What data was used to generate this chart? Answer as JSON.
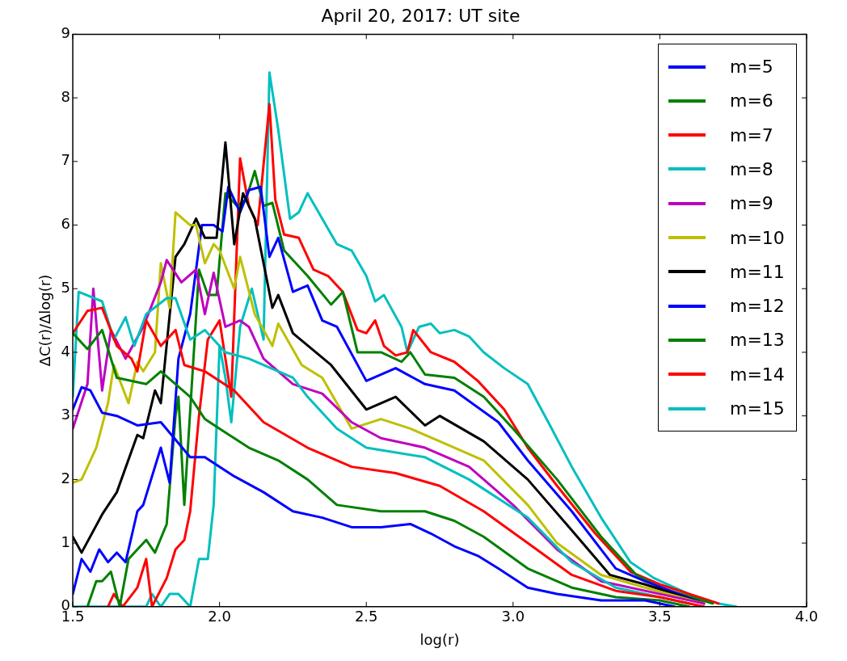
{
  "chart_data": {
    "type": "line",
    "title": "April 20, 2017: UT site",
    "xlabel": "log(r)",
    "ylabel": "ΔC(r)/Δlog(r)",
    "xlim": [
      1.5,
      4.0
    ],
    "ylim": [
      0,
      9
    ],
    "xticks": [
      1.5,
      {
        "value": 2,
        "label": "2.0"
      },
      2.5,
      {
        "value": 3,
        "label": "3.0"
      },
      3.5,
      {
        "value": 4,
        "label": "4.0"
      }
    ],
    "yticks": [
      0,
      1,
      2,
      3,
      4,
      5,
      6,
      7,
      8,
      9
    ],
    "grid": false,
    "legend": "top right",
    "marker": "none",
    "line_style": "solid",
    "series": [
      {
        "name": "m=5",
        "color": "#0000ff",
        "x": [
          1.5,
          1.53,
          1.56,
          1.6,
          1.65,
          1.72,
          1.8,
          1.9,
          1.95,
          2.05,
          2.15,
          2.25,
          2.35,
          2.45,
          2.55,
          2.65,
          2.72,
          2.8,
          2.88,
          2.95,
          3.05,
          3.15,
          3.3,
          3.45,
          3.55
        ],
        "values": [
          3.1,
          3.45,
          3.4,
          3.05,
          3.0,
          2.85,
          2.9,
          2.35,
          2.35,
          2.05,
          1.8,
          1.5,
          1.4,
          1.25,
          1.25,
          1.3,
          1.15,
          0.95,
          0.8,
          0.6,
          0.3,
          0.2,
          0.1,
          0.1,
          0
        ]
      },
      {
        "name": "m=6",
        "color": "#008000",
        "x": [
          1.5,
          1.55,
          1.6,
          1.65,
          1.75,
          1.8,
          1.9,
          1.95,
          2.0,
          2.1,
          2.2,
          2.3,
          2.4,
          2.55,
          2.7,
          2.8,
          2.9,
          3.05,
          3.2,
          3.35,
          3.5,
          3.6
        ],
        "values": [
          4.3,
          4.05,
          4.35,
          3.6,
          3.5,
          3.7,
          3.3,
          2.95,
          2.8,
          2.5,
          2.3,
          2.0,
          1.6,
          1.5,
          1.5,
          1.35,
          1.1,
          0.6,
          0.3,
          0.15,
          0.1,
          0
        ]
      },
      {
        "name": "m=7",
        "color": "#ff0000",
        "x": [
          1.5,
          1.55,
          1.6,
          1.65,
          1.7,
          1.72,
          1.75,
          1.8,
          1.85,
          1.88,
          1.95,
          2.05,
          2.15,
          2.3,
          2.45,
          2.6,
          2.75,
          2.9,
          3.05,
          3.2,
          3.35,
          3.5,
          3.65
        ],
        "values": [
          4.3,
          4.65,
          4.7,
          4.1,
          3.9,
          3.7,
          4.5,
          4.1,
          4.35,
          3.8,
          3.7,
          3.4,
          2.9,
          2.5,
          2.2,
          2.1,
          1.9,
          1.5,
          1.0,
          0.5,
          0.25,
          0.15,
          0
        ]
      },
      {
        "name": "m=8",
        "color": "#00bfbf",
        "x": [
          1.5,
          1.52,
          1.6,
          1.64,
          1.68,
          1.71,
          1.75,
          1.82,
          1.85,
          1.9,
          1.95,
          2.02,
          2.1,
          2.25,
          2.3,
          2.4,
          2.5,
          2.7,
          2.85,
          3.05,
          3.2,
          3.35,
          3.45,
          3.6
        ],
        "values": [
          3.3,
          4.95,
          4.8,
          4.2,
          4.55,
          4.1,
          4.6,
          4.85,
          4.85,
          4.2,
          4.35,
          4.0,
          3.9,
          3.6,
          3.3,
          2.8,
          2.5,
          2.35,
          2.0,
          1.4,
          0.7,
          0.3,
          0.2,
          0.05
        ]
      },
      {
        "name": "m=9",
        "color": "#bf00bf",
        "x": [
          1.5,
          1.55,
          1.57,
          1.6,
          1.63,
          1.68,
          1.74,
          1.8,
          1.82,
          1.87,
          1.92,
          1.95,
          1.98,
          2.02,
          2.07,
          2.1,
          2.15,
          2.25,
          2.35,
          2.45,
          2.55,
          2.7,
          2.85,
          3.0,
          3.15,
          3.3,
          3.45,
          3.65
        ],
        "values": [
          2.8,
          3.5,
          5.0,
          3.4,
          4.35,
          3.9,
          4.4,
          5.1,
          5.45,
          5.1,
          5.3,
          4.6,
          5.25,
          4.4,
          4.5,
          4.4,
          3.9,
          3.5,
          3.35,
          2.9,
          2.65,
          2.5,
          2.2,
          1.6,
          0.9,
          0.4,
          0.25,
          0.05
        ]
      },
      {
        "name": "m=10",
        "color": "#bfbf00",
        "x": [
          1.5,
          1.53,
          1.58,
          1.62,
          1.64,
          1.69,
          1.72,
          1.74,
          1.78,
          1.8,
          1.83,
          1.85,
          1.9,
          1.92,
          1.95,
          1.98,
          2.0,
          2.05,
          2.07,
          2.12,
          2.18,
          2.2,
          2.28,
          2.35,
          2.45,
          2.55,
          2.65,
          2.75,
          2.9,
          3.05,
          3.15,
          3.3,
          3.45,
          3.65
        ],
        "values": [
          1.95,
          2.0,
          2.5,
          3.2,
          3.8,
          3.2,
          3.85,
          3.7,
          4.0,
          5.4,
          4.7,
          6.2,
          6.0,
          6.0,
          5.4,
          5.7,
          5.6,
          5.0,
          5.5,
          4.6,
          4.1,
          4.45,
          3.8,
          3.6,
          2.8,
          2.95,
          2.8,
          2.6,
          2.3,
          1.6,
          1.0,
          0.5,
          0.3,
          0.05
        ]
      },
      {
        "name": "m=11",
        "color": "#000000",
        "x": [
          1.5,
          1.53,
          1.6,
          1.65,
          1.72,
          1.74,
          1.78,
          1.8,
          1.85,
          1.88,
          1.92,
          1.95,
          1.99,
          2.02,
          2.05,
          2.08,
          2.12,
          2.18,
          2.2,
          2.25,
          2.38,
          2.5,
          2.6,
          2.7,
          2.75,
          2.9,
          3.05,
          3.2,
          3.33,
          3.45,
          3.65
        ],
        "values": [
          1.1,
          0.85,
          1.45,
          1.8,
          2.7,
          2.65,
          3.4,
          3.2,
          5.5,
          5.7,
          6.1,
          5.8,
          5.8,
          7.3,
          5.7,
          6.5,
          6.1,
          4.7,
          4.9,
          4.3,
          3.8,
          3.1,
          3.3,
          2.85,
          3.0,
          2.6,
          2.0,
          1.2,
          0.5,
          0.35,
          0.05
        ]
      },
      {
        "name": "m=12",
        "color": "#0000ff",
        "x": [
          1.5,
          1.53,
          1.56,
          1.59,
          1.62,
          1.65,
          1.68,
          1.72,
          1.74,
          1.8,
          1.83,
          1.86,
          1.9,
          1.94,
          1.98,
          2.01,
          2.03,
          2.07,
          2.1,
          2.14,
          2.17,
          2.2,
          2.25,
          2.3,
          2.35,
          2.4,
          2.5,
          2.6,
          2.7,
          2.8,
          2.95,
          3.05,
          3.2,
          3.35,
          3.45,
          3.65
        ],
        "values": [
          0.2,
          0.75,
          0.55,
          0.9,
          0.7,
          0.85,
          0.7,
          1.5,
          1.6,
          2.5,
          1.95,
          3.9,
          4.6,
          6.0,
          6.0,
          5.9,
          6.6,
          6.2,
          6.55,
          6.6,
          5.5,
          5.8,
          4.95,
          5.05,
          4.5,
          4.4,
          3.55,
          3.75,
          3.5,
          3.4,
          2.9,
          2.3,
          1.5,
          0.6,
          0.4,
          0.05
        ]
      },
      {
        "name": "m=13",
        "color": "#008000",
        "x": [
          1.55,
          1.58,
          1.6,
          1.63,
          1.66,
          1.69,
          1.75,
          1.78,
          1.82,
          1.85,
          1.86,
          1.88,
          1.93,
          1.96,
          1.99,
          2.02,
          2.06,
          2.09,
          2.12,
          2.15,
          2.18,
          2.22,
          2.3,
          2.38,
          2.42,
          2.47,
          2.55,
          2.62,
          2.65,
          2.7,
          2.8,
          2.9,
          3.0,
          3.15,
          3.3,
          3.42,
          3.5,
          3.68
        ],
        "values": [
          0,
          0.4,
          0.4,
          0.55,
          0,
          0.75,
          1.05,
          0.85,
          1.3,
          3.0,
          3.3,
          1.6,
          5.3,
          4.9,
          4.9,
          6.5,
          6.3,
          6.4,
          6.85,
          6.3,
          6.35,
          5.6,
          5.2,
          4.75,
          4.95,
          4.0,
          4.0,
          3.85,
          4.0,
          3.65,
          3.6,
          3.3,
          2.8,
          2.0,
          1.1,
          0.5,
          0.3,
          0.05
        ]
      },
      {
        "name": "m=14",
        "color": "#ff0000",
        "x": [
          1.62,
          1.64,
          1.67,
          1.72,
          1.75,
          1.77,
          1.82,
          1.85,
          1.88,
          1.9,
          1.93,
          1.96,
          2.0,
          2.04,
          2.07,
          2.1,
          2.13,
          2.17,
          2.19,
          2.22,
          2.27,
          2.32,
          2.37,
          2.42,
          2.47,
          2.5,
          2.53,
          2.56,
          2.6,
          2.64,
          2.66,
          2.72,
          2.8,
          2.88,
          2.97,
          3.05,
          3.15,
          3.28,
          3.4,
          3.5,
          3.7
        ],
        "values": [
          0,
          0.2,
          0,
          0.3,
          0.75,
          0,
          0.45,
          0.9,
          1.05,
          1.5,
          3.0,
          4.2,
          4.5,
          3.3,
          7.05,
          6.3,
          6.0,
          7.9,
          6.4,
          5.85,
          5.8,
          5.3,
          5.2,
          4.95,
          4.35,
          4.3,
          4.5,
          4.1,
          3.95,
          4.0,
          4.35,
          4.0,
          3.85,
          3.55,
          3.1,
          2.5,
          1.9,
          1.15,
          0.55,
          0.35,
          0.05
        ]
      },
      {
        "name": "m=15",
        "color": "#00bfbf",
        "x": [
          1.5,
          1.75,
          1.77,
          1.8,
          1.83,
          1.86,
          1.9,
          1.93,
          1.96,
          1.98,
          2.0,
          2.02,
          2.04,
          2.07,
          2.11,
          2.15,
          2.17,
          2.2,
          2.24,
          2.27,
          2.3,
          2.35,
          2.4,
          2.45,
          2.5,
          2.53,
          2.56,
          2.62,
          2.64,
          2.68,
          2.72,
          2.75,
          2.8,
          2.85,
          2.9,
          2.97,
          3.05,
          3.12,
          3.2,
          3.3,
          3.4,
          3.48,
          3.55,
          3.6,
          3.7,
          3.76
        ],
        "values": [
          0,
          0,
          0.2,
          0,
          0.2,
          0.2,
          0,
          0.75,
          0.75,
          1.6,
          4.1,
          3.6,
          2.9,
          4.4,
          5.0,
          4.2,
          8.4,
          7.5,
          6.1,
          6.2,
          6.5,
          6.1,
          5.7,
          5.6,
          5.2,
          4.8,
          4.9,
          4.4,
          4.0,
          4.4,
          4.45,
          4.3,
          4.35,
          4.25,
          4.0,
          3.75,
          3.5,
          2.9,
          2.2,
          1.4,
          0.7,
          0.45,
          0.3,
          0.2,
          0.05,
          0
        ]
      }
    ]
  }
}
